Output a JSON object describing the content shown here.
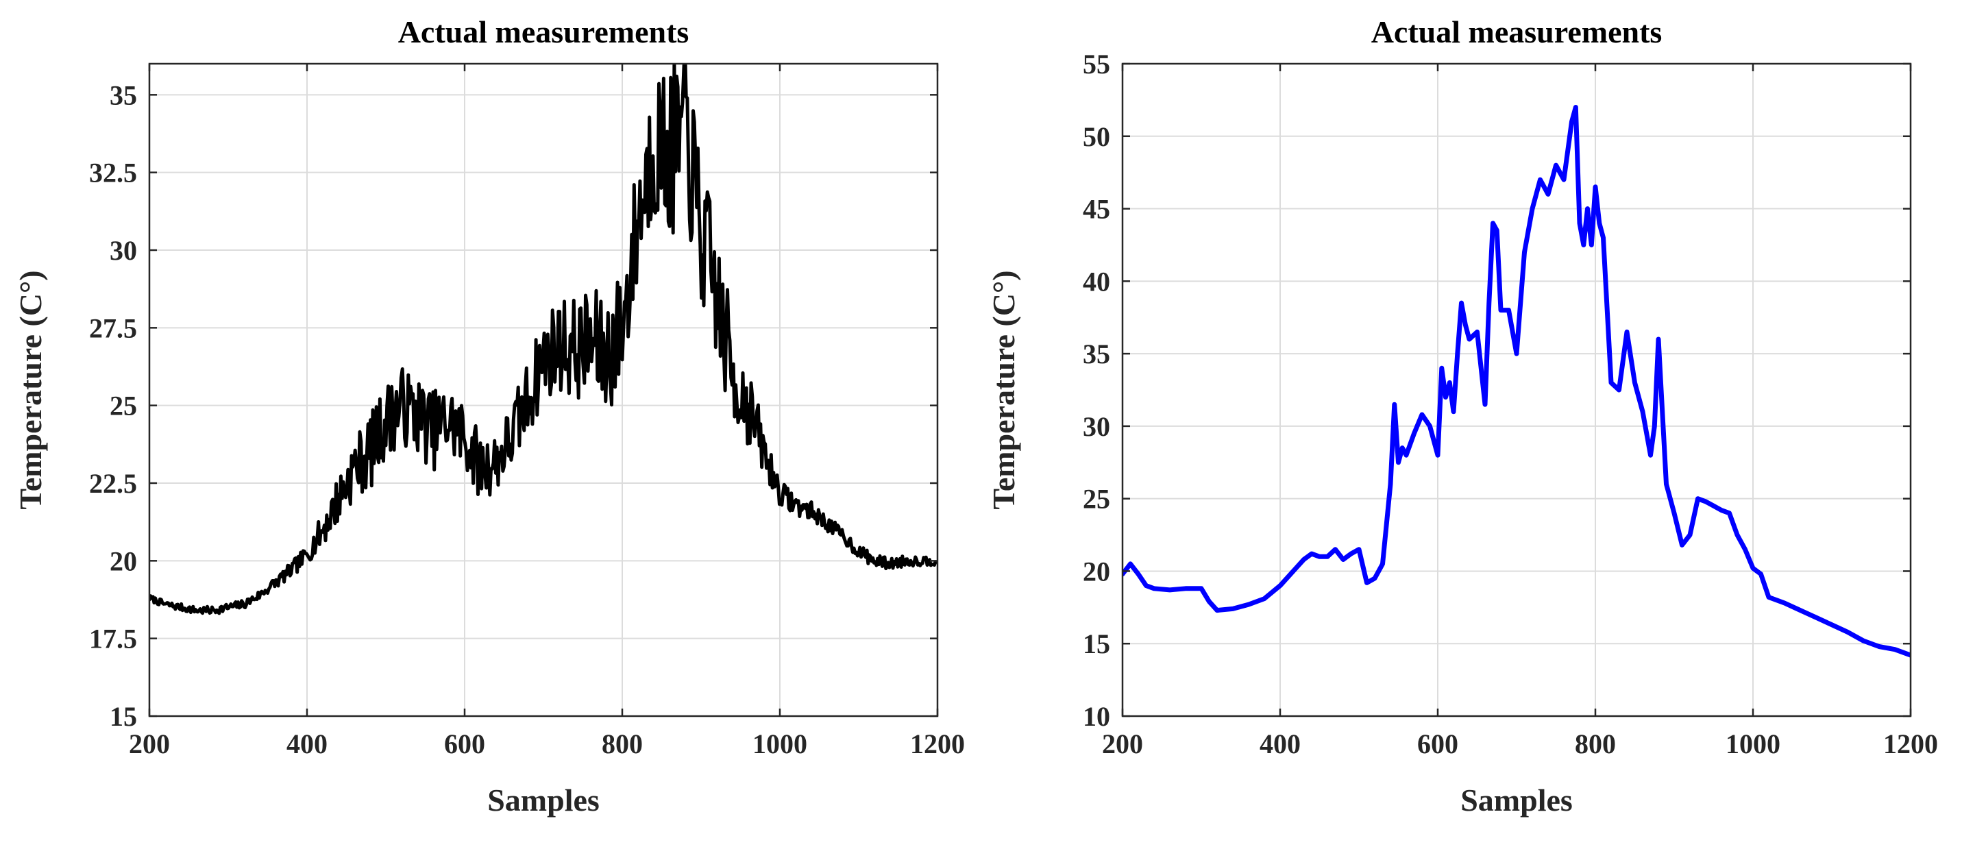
{
  "chart_data": [
    {
      "type": "line",
      "title": "Actual measurements",
      "xlabel": "Samples",
      "ylabel": "Temperature  (C°)",
      "xlim": [
        200,
        1200
      ],
      "ylim": [
        15,
        36
      ],
      "xticks": [
        200,
        400,
        600,
        800,
        1000,
        1200
      ],
      "yticks": [
        15,
        17.5,
        20,
        22.5,
        25,
        27.5,
        30,
        32.5,
        35
      ],
      "xtick_labels": [
        "200",
        "400",
        "600",
        "800",
        "1000",
        "1200"
      ],
      "ytick_labels": [
        "15",
        "17.5",
        "20",
        "22.5",
        "25",
        "27.5",
        "30",
        "32.5",
        "35"
      ],
      "grid": true,
      "color": "#000000",
      "noise": [
        [
          200,
          0.1
        ],
        [
          340,
          0.15
        ],
        [
          400,
          0.3
        ],
        [
          440,
          0.8
        ],
        [
          480,
          1.2
        ],
        [
          560,
          1.3
        ],
        [
          640,
          1.0
        ],
        [
          700,
          1.4
        ],
        [
          820,
          2.2
        ],
        [
          860,
          2.8
        ],
        [
          900,
          2.6
        ],
        [
          940,
          1.8
        ],
        [
          980,
          0.8
        ],
        [
          1000,
          0.4
        ],
        [
          1060,
          0.25
        ],
        [
          1200,
          0.15
        ]
      ],
      "x": [
        200,
        220,
        240,
        260,
        280,
        300,
        320,
        340,
        360,
        380,
        400,
        420,
        440,
        460,
        480,
        500,
        520,
        540,
        560,
        580,
        600,
        620,
        640,
        660,
        680,
        700,
        720,
        740,
        760,
        780,
        800,
        820,
        840,
        860,
        880,
        900,
        920,
        940,
        960,
        980,
        1000,
        1020,
        1040,
        1060,
        1080,
        1100,
        1120,
        1140,
        1160,
        1180,
        1200
      ],
      "y": [
        18.8,
        18.6,
        18.5,
        18.4,
        18.4,
        18.5,
        18.6,
        18.9,
        19.3,
        19.7,
        20.2,
        21.0,
        22.0,
        23.0,
        23.5,
        24.5,
        25.0,
        24.7,
        24.2,
        24.5,
        24.0,
        23.0,
        23.2,
        24.0,
        25.2,
        26.5,
        27.0,
        26.8,
        27.0,
        26.6,
        27.5,
        31.0,
        33.5,
        33.0,
        34.0,
        30.5,
        28.5,
        26.0,
        25.0,
        23.5,
        22.2,
        21.8,
        21.6,
        21.2,
        20.8,
        20.3,
        20.0,
        19.9,
        20.0,
        20.0,
        20.0
      ]
    },
    {
      "type": "line",
      "title": "Actual measurements",
      "xlabel": "Samples",
      "ylabel": "Temperature  (C°)",
      "xlim": [
        200,
        1200
      ],
      "ylim": [
        10,
        55
      ],
      "xticks": [
        200,
        400,
        600,
        800,
        1000,
        1200
      ],
      "yticks": [
        10,
        15,
        20,
        25,
        30,
        35,
        40,
        45,
        50,
        55
      ],
      "xtick_labels": [
        "200",
        "400",
        "600",
        "800",
        "1000",
        "1200"
      ],
      "ytick_labels": [
        "10",
        "15",
        "20",
        "25",
        "30",
        "35",
        "40",
        "45",
        "50",
        "55"
      ],
      "grid": true,
      "color": "#0000ff",
      "x": [
        200,
        210,
        220,
        230,
        240,
        260,
        280,
        300,
        310,
        320,
        340,
        360,
        380,
        400,
        420,
        430,
        440,
        450,
        460,
        470,
        480,
        490,
        500,
        510,
        520,
        530,
        540,
        545,
        550,
        555,
        560,
        570,
        580,
        590,
        600,
        605,
        610,
        615,
        620,
        625,
        630,
        635,
        640,
        650,
        660,
        665,
        670,
        675,
        680,
        690,
        700,
        710,
        720,
        730,
        740,
        750,
        760,
        770,
        775,
        780,
        785,
        790,
        795,
        800,
        805,
        810,
        820,
        830,
        840,
        850,
        860,
        870,
        875,
        880,
        890,
        900,
        910,
        920,
        930,
        940,
        950,
        960,
        970,
        980,
        990,
        1000,
        1010,
        1020,
        1040,
        1060,
        1080,
        1100,
        1120,
        1140,
        1160,
        1180,
        1200
      ],
      "y": [
        19.8,
        20.5,
        19.8,
        19.0,
        18.8,
        18.7,
        18.8,
        18.8,
        17.9,
        17.3,
        17.4,
        17.7,
        18.1,
        19.0,
        20.2,
        20.8,
        21.2,
        21.0,
        21.0,
        21.5,
        20.8,
        21.2,
        21.5,
        19.2,
        19.5,
        20.5,
        26.0,
        31.5,
        27.5,
        28.5,
        28.0,
        29.5,
        30.8,
        30.0,
        28.0,
        34.0,
        32.0,
        33.0,
        31.0,
        35.0,
        38.5,
        37.0,
        36.0,
        36.5,
        31.5,
        38.5,
        44.0,
        43.5,
        38.0,
        38.0,
        35.0,
        42.0,
        45.0,
        47.0,
        46.0,
        48.0,
        47.0,
        51.0,
        52.0,
        44.0,
        42.5,
        45.0,
        42.5,
        46.5,
        44.0,
        43.0,
        33.0,
        32.5,
        36.5,
        33.0,
        31.0,
        28.0,
        30.0,
        36.0,
        26.0,
        24.0,
        21.8,
        22.5,
        25.0,
        24.8,
        24.5,
        24.2,
        24.0,
        22.5,
        21.5,
        20.2,
        19.8,
        18.2,
        17.8,
        17.3,
        16.8,
        16.3,
        15.8,
        15.2,
        14.8,
        14.6,
        14.2
      ]
    }
  ]
}
